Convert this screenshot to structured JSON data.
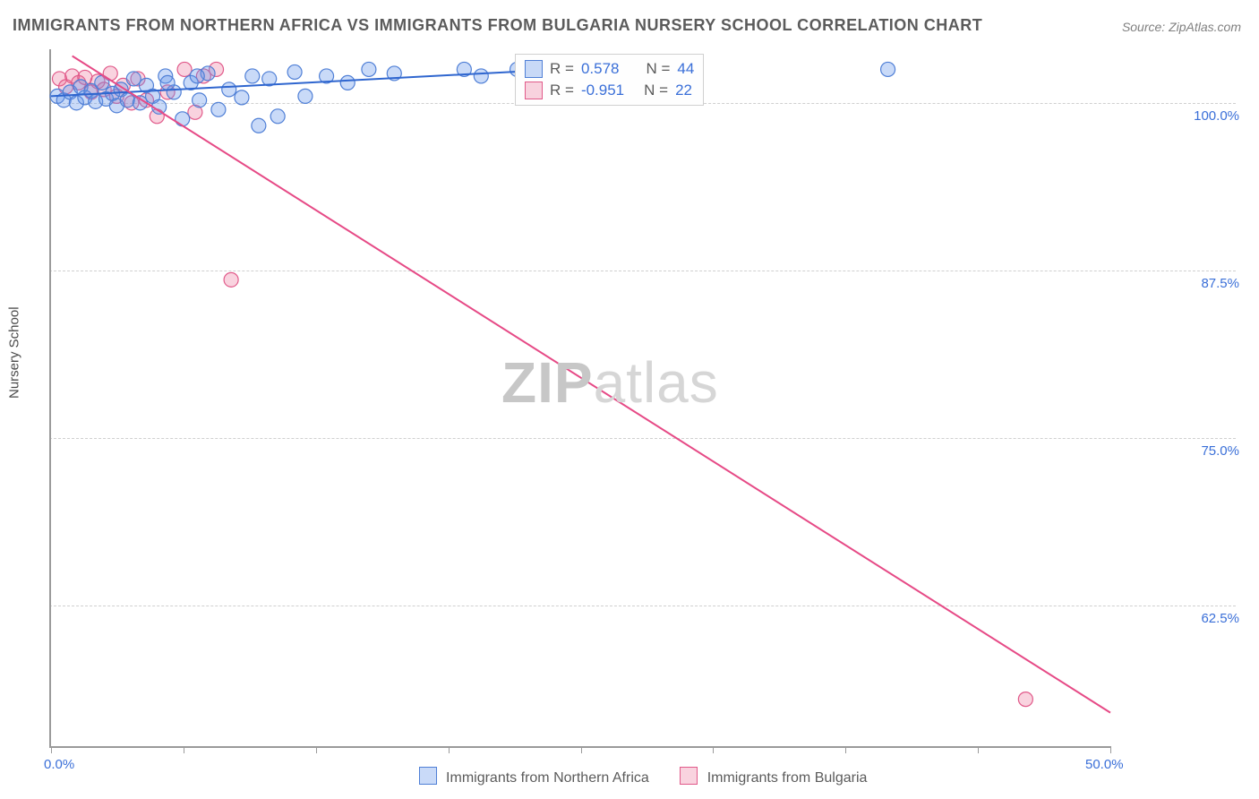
{
  "title": "IMMIGRANTS FROM NORTHERN AFRICA VS IMMIGRANTS FROM BULGARIA NURSERY SCHOOL CORRELATION CHART",
  "source": "Source: ZipAtlas.com",
  "ylabel": "Nursery School",
  "watermark": {
    "bold": "ZIP",
    "light": "atlas"
  },
  "chart": {
    "type": "scatter-with-regression",
    "background_color": "#ffffff",
    "grid_color": "#cfcfcf",
    "axis_color": "#9a9a9a",
    "xlim": [
      0,
      50
    ],
    "ylim": [
      52,
      104
    ],
    "x_ticks": [
      0,
      6.25,
      12.5,
      18.75,
      25,
      31.25,
      37.5,
      43.75,
      50
    ],
    "x_tick_labels": {
      "0": "0.0%",
      "50": "50.0%"
    },
    "y_ticks": [
      62.5,
      75.0,
      87.5,
      100.0
    ],
    "y_tick_labels": [
      "62.5%",
      "75.0%",
      "87.5%",
      "100.0%"
    ],
    "tick_label_color": "#3a6fd8",
    "tick_label_fontsize": 15,
    "marker_radius": 8,
    "marker_opacity": 0.45,
    "line_width": 2
  },
  "series": {
    "blue": {
      "label": "Immigrants from Northern Africa",
      "color_fill": "rgba(100,150,235,0.35)",
      "color_stroke": "#4f7fd6",
      "line_color": "#2f66cf",
      "R": "0.578",
      "N": "44",
      "regression": {
        "x1": 0,
        "y1": 100.5,
        "x2": 24,
        "y2": 102.5
      },
      "points": [
        [
          0.3,
          100.5
        ],
        [
          0.6,
          100.2
        ],
        [
          0.9,
          100.8
        ],
        [
          1.2,
          100.0
        ],
        [
          1.4,
          101.2
        ],
        [
          1.6,
          100.4
        ],
        [
          1.9,
          100.9
        ],
        [
          2.1,
          100.1
        ],
        [
          2.4,
          101.5
        ],
        [
          2.6,
          100.3
        ],
        [
          2.9,
          100.7
        ],
        [
          3.1,
          99.8
        ],
        [
          3.3,
          101.0
        ],
        [
          3.6,
          100.2
        ],
        [
          3.9,
          101.8
        ],
        [
          4.2,
          100.0
        ],
        [
          4.5,
          101.3
        ],
        [
          4.8,
          100.5
        ],
        [
          5.1,
          99.7
        ],
        [
          5.4,
          102.0
        ],
        [
          5.8,
          100.8
        ],
        [
          6.2,
          98.8
        ],
        [
          6.6,
          101.5
        ],
        [
          7.0,
          100.2
        ],
        [
          7.4,
          102.2
        ],
        [
          7.9,
          99.5
        ],
        [
          8.4,
          101.0
        ],
        [
          9.0,
          100.4
        ],
        [
          9.5,
          102.0
        ],
        [
          9.8,
          98.3
        ],
        [
          10.3,
          101.8
        ],
        [
          10.7,
          99.0
        ],
        [
          11.5,
          102.3
        ],
        [
          12.0,
          100.5
        ],
        [
          13.0,
          102.0
        ],
        [
          14.0,
          101.5
        ],
        [
          15.0,
          102.5
        ],
        [
          16.2,
          102.2
        ],
        [
          19.5,
          102.5
        ],
        [
          20.3,
          102.0
        ],
        [
          22.0,
          102.5
        ],
        [
          39.5,
          102.5
        ],
        [
          5.5,
          101.5
        ],
        [
          6.9,
          102.0
        ]
      ]
    },
    "pink": {
      "label": "Immigrants from Bulgaria",
      "color_fill": "rgba(235,110,150,0.30)",
      "color_stroke": "#e15a8a",
      "line_color": "#e64a86",
      "R": "-0.951",
      "N": "22",
      "regression": {
        "x1": 1.0,
        "y1": 103.5,
        "x2": 50,
        "y2": 54.5
      },
      "points": [
        [
          0.4,
          101.8
        ],
        [
          0.7,
          101.2
        ],
        [
          1.0,
          102.0
        ],
        [
          1.3,
          101.5
        ],
        [
          1.6,
          101.9
        ],
        [
          1.9,
          100.8
        ],
        [
          2.2,
          101.6
        ],
        [
          2.5,
          101.0
        ],
        [
          2.8,
          102.2
        ],
        [
          3.1,
          100.5
        ],
        [
          3.4,
          101.3
        ],
        [
          3.8,
          100.0
        ],
        [
          4.1,
          101.8
        ],
        [
          4.5,
          100.2
        ],
        [
          5.0,
          99.0
        ],
        [
          5.5,
          100.8
        ],
        [
          6.3,
          102.5
        ],
        [
          6.8,
          99.3
        ],
        [
          7.2,
          102.0
        ],
        [
          7.8,
          102.5
        ],
        [
          8.5,
          86.8
        ],
        [
          46.0,
          55.5
        ]
      ]
    }
  },
  "legend_swatch_blue": {
    "fill": "rgba(100,150,235,0.35)",
    "stroke": "#4f7fd6"
  },
  "legend_swatch_pink": {
    "fill": "rgba(235,110,150,0.30)",
    "stroke": "#e15a8a"
  },
  "stats_labels": {
    "R": "R  =",
    "N": "N  ="
  }
}
